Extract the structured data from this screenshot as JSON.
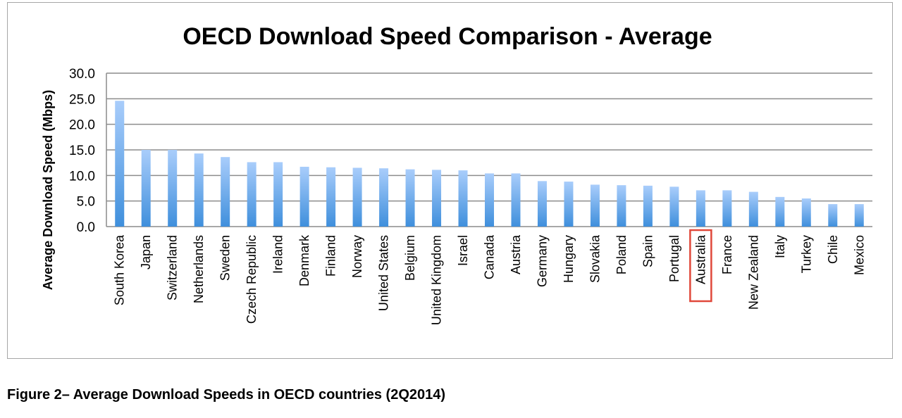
{
  "chart_data": {
    "type": "bar",
    "title": "OECD Download Speed Comparison - Average",
    "xlabel": "",
    "ylabel": "Average Download Speed (Mbps)",
    "ylim": [
      0,
      30
    ],
    "yticks": [
      "0.0",
      "5.0",
      "10.0",
      "15.0",
      "20.0",
      "25.0",
      "30.0"
    ],
    "grid": true,
    "categories": [
      "South Korea",
      "Japan",
      "Switzerland",
      "Netherlands",
      "Sweden",
      "Czech Republic",
      "Ireland",
      "Denmark",
      "Finland",
      "Norway",
      "United States",
      "Belgium",
      "United Kingdom",
      "Israel",
      "Canada",
      "Austria",
      "Germany",
      "Hungary",
      "Slovakia",
      "Poland",
      "Spain",
      "Portugal",
      "Australia",
      "France",
      "New Zealand",
      "Italy",
      "Turkey",
      "Chile",
      "Mexico"
    ],
    "values": [
      24.6,
      15.0,
      15.0,
      14.3,
      13.6,
      12.6,
      12.6,
      11.7,
      11.6,
      11.5,
      11.4,
      11.2,
      11.1,
      11.0,
      10.4,
      10.4,
      8.9,
      8.8,
      8.2,
      8.1,
      8.0,
      7.8,
      7.1,
      7.1,
      6.8,
      5.8,
      5.5,
      4.4,
      4.4
    ],
    "highlighted_category": "Australia",
    "highlight_color": "#e0483a",
    "bar_color_top": "#a9cdfb",
    "bar_color_bottom": "#3f8fdc"
  },
  "caption": "Figure 2– Average Download Speeds in OECD countries (2Q2014)"
}
